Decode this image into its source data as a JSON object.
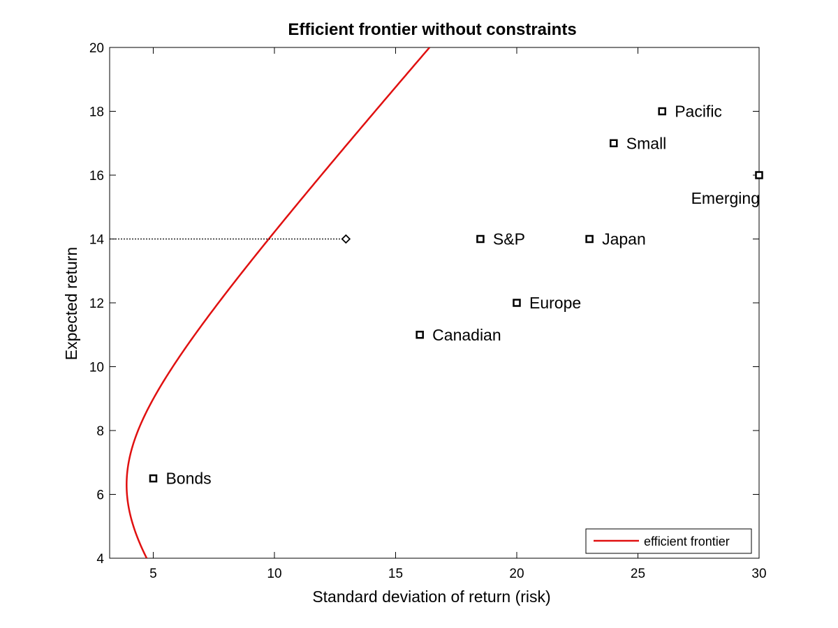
{
  "chart_data": {
    "type": "scatter",
    "title": "Efficient frontier without constraints",
    "xlabel": "Standard deviation of return (risk)",
    "ylabel": "Expected return",
    "xlim": [
      3.2,
      30
    ],
    "ylim": [
      4,
      20
    ],
    "xticks": [
      5,
      10,
      15,
      20,
      25,
      30
    ],
    "yticks": [
      4,
      6,
      8,
      10,
      12,
      14,
      16,
      18,
      20
    ],
    "grid": false,
    "legend": {
      "position": "bottom-right",
      "entries": [
        "efficient frontier"
      ]
    },
    "colors": {
      "frontier": "#e01010",
      "points": "#000000",
      "guide": "#000000"
    },
    "frontier": {
      "name": "efficient frontier",
      "min_variance_point": {
        "x": 3.9,
        "y": 6.3
      },
      "asymptote_slope": 0.86,
      "y_range": [
        4,
        20
      ]
    },
    "assets": [
      {
        "label": "Bonds",
        "x": 5.0,
        "y": 6.5,
        "label_pos": "right"
      },
      {
        "label": "Canadian",
        "x": 16.0,
        "y": 11.0,
        "label_pos": "right"
      },
      {
        "label": "Europe",
        "x": 20.0,
        "y": 12.0,
        "label_pos": "right"
      },
      {
        "label": "S&P",
        "x": 18.5,
        "y": 14.0,
        "label_pos": "right"
      },
      {
        "label": "Japan",
        "x": 23.0,
        "y": 14.0,
        "label_pos": "right"
      },
      {
        "label": "Small",
        "x": 24.0,
        "y": 17.0,
        "label_pos": "right"
      },
      {
        "label": "Pacific",
        "x": 26.0,
        "y": 18.0,
        "label_pos": "right"
      },
      {
        "label": "Emerging",
        "x": 30.0,
        "y": 16.0,
        "label_pos": "below-left"
      }
    ],
    "target_portfolio": {
      "x": 12.95,
      "y": 14.0
    }
  }
}
